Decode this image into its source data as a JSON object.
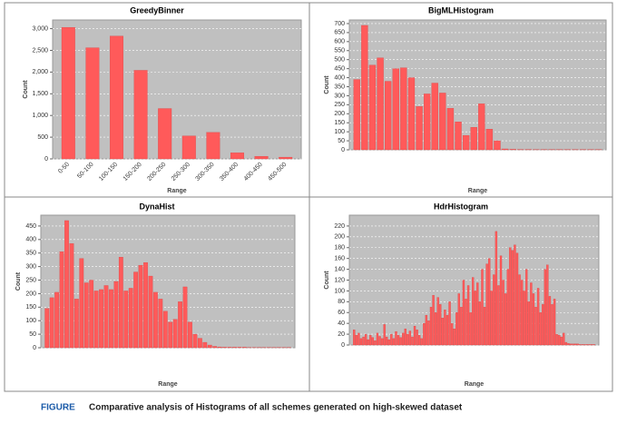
{
  "chart_data": [
    {
      "type": "bar",
      "title": "GreedyBinner",
      "x_label": "Range",
      "y_label": "Count",
      "color": "#ff5a5a",
      "categories": [
        "0-50",
        "50-100",
        "100-150",
        "150-200",
        "200-250",
        "250-300",
        "300-350",
        "350-400",
        "400-450",
        "450-500"
      ],
      "values": [
        3030,
        2560,
        2830,
        2040,
        1160,
        530,
        610,
        140,
        60,
        40
      ],
      "ylim": [
        0,
        3200
      ],
      "yticks": [
        0,
        500,
        {
          "value": 1000,
          "label": "1,000"
        },
        {
          "value": 1500,
          "label": "1,500"
        },
        {
          "value": 2000,
          "label": "2,000"
        },
        {
          "value": 2500,
          "label": "2,500"
        },
        {
          "value": 3000,
          "label": "3,000"
        }
      ]
    },
    {
      "type": "bar",
      "title": "BigMLHistogram",
      "x_label": "Range",
      "y_label": "Count",
      "color": "#ff5a5a",
      "categories": [
        null,
        null,
        null,
        null,
        null,
        null,
        null,
        null,
        null,
        null,
        null,
        null,
        null,
        null,
        null,
        null,
        null,
        null,
        null,
        null,
        null,
        null,
        null,
        null,
        null,
        null,
        null,
        null,
        null,
        null,
        null,
        null
      ],
      "values": [
        390,
        690,
        470,
        510,
        380,
        450,
        455,
        400,
        240,
        310,
        370,
        315,
        230,
        155,
        80,
        125,
        255,
        115,
        50,
        5,
        3,
        2,
        2,
        1,
        1,
        1,
        1,
        1,
        1,
        1,
        1,
        1
      ],
      "ylim": [
        0,
        720
      ],
      "yticks": [
        0,
        50,
        100,
        150,
        200,
        250,
        300,
        350,
        400,
        450,
        500,
        550,
        600,
        650,
        700
      ]
    },
    {
      "type": "bar",
      "title": "DynaHist",
      "x_label": "Range",
      "y_label": "Count",
      "color": "#ff5a5a",
      "categories": [
        null,
        null,
        null,
        null,
        null,
        null,
        null,
        null,
        null,
        null,
        null,
        null,
        null,
        null,
        null,
        null,
        null,
        null,
        null,
        null,
        null,
        null,
        null,
        null,
        null,
        null,
        null,
        null,
        null,
        null,
        null,
        null,
        null,
        null,
        null,
        null,
        null,
        null,
        null,
        null,
        null,
        null,
        null,
        null,
        null,
        null,
        null,
        null,
        null,
        null
      ],
      "values": [
        145,
        185,
        205,
        355,
        470,
        385,
        180,
        330,
        240,
        250,
        210,
        215,
        230,
        215,
        245,
        335,
        210,
        220,
        280,
        305,
        315,
        265,
        205,
        180,
        135,
        95,
        105,
        170,
        225,
        95,
        50,
        35,
        20,
        10,
        5,
        3,
        2,
        2,
        2,
        2,
        2,
        1,
        1,
        1,
        1,
        1,
        1,
        1,
        1,
        1
      ],
      "ylim": [
        0,
        490
      ],
      "yticks": [
        0,
        50,
        100,
        150,
        200,
        250,
        300,
        350,
        400,
        450
      ]
    },
    {
      "type": "bar",
      "title": "HdrHistogram",
      "x_label": "Range",
      "y_label": "Count",
      "color": "#ff5a5a",
      "categories": [
        null,
        null,
        null,
        null,
        null,
        null,
        null,
        null,
        null,
        null,
        null,
        null,
        null,
        null,
        null,
        null,
        null,
        null,
        null,
        null,
        null,
        null,
        null,
        null,
        null,
        null,
        null,
        null,
        null,
        null,
        null,
        null,
        null,
        null,
        null,
        null,
        null,
        null,
        null,
        null,
        null,
        null,
        null,
        null,
        null,
        null,
        null,
        null,
        null,
        null,
        null,
        null,
        null,
        null,
        null,
        null,
        null,
        null,
        null,
        null,
        null,
        null,
        null,
        null,
        null,
        null,
        null,
        null,
        null,
        null,
        null,
        null,
        null,
        null,
        null,
        null,
        null,
        null,
        null,
        null,
        null,
        null,
        null,
        null,
        null,
        null,
        null,
        null,
        null,
        null,
        null,
        null,
        null,
        null,
        null,
        null,
        null,
        null,
        null,
        null,
        null,
        null,
        null,
        null
      ],
      "values": [
        28,
        18,
        22,
        12,
        15,
        20,
        10,
        18,
        14,
        8,
        22,
        16,
        12,
        38,
        15,
        10,
        20,
        12,
        25,
        18,
        14,
        22,
        30,
        20,
        26,
        15,
        35,
        28,
        18,
        12,
        40,
        55,
        45,
        70,
        92,
        60,
        88,
        75,
        50,
        65,
        55,
        80,
        40,
        30,
        60,
        95,
        70,
        120,
        85,
        110,
        60,
        125,
        100,
        115,
        80,
        140,
        70,
        150,
        160,
        100,
        130,
        210,
        110,
        165,
        120,
        95,
        140,
        180,
        175,
        185,
        170,
        130,
        120,
        100,
        140,
        80,
        115,
        95,
        70,
        105,
        60,
        75,
        140,
        148,
        90,
        75,
        85,
        20,
        18,
        15,
        22,
        5,
        3,
        2,
        2,
        2,
        2,
        1,
        1,
        1,
        1,
        1,
        1,
        1
      ],
      "ylim": [
        0,
        240
      ],
      "yticks": [
        0,
        20,
        40,
        60,
        80,
        100,
        120,
        140,
        160,
        180,
        200,
        220
      ]
    }
  ],
  "caption": {
    "label": "FIGURE",
    "text": "Comparative analysis of Histograms of all schemes generated on high-skewed dataset"
  }
}
